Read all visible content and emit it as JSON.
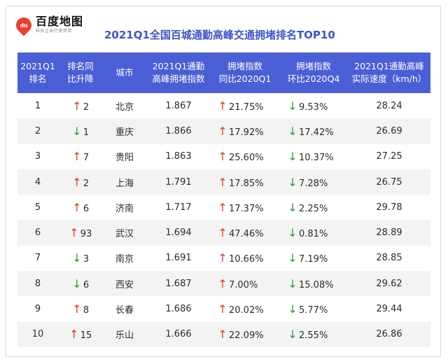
{
  "logo": {
    "badge": "du",
    "name": "百度地图",
    "slogan": "科技让出行更简单"
  },
  "title": "2021Q1全国百城通勤高峰交通拥堵排名TOP10",
  "colors": {
    "header_bg": "#4a5fd6",
    "title": "#3f55c8",
    "up_arrow": "#e23b2b",
    "down_arrow": "#2e9a3a"
  },
  "columns": [
    "2021Q1\n排名",
    "排名同\n比升降",
    "城市",
    "2021Q1通勤\n高峰拥堵指数",
    "拥堵指数\n同比2020Q1",
    "拥堵指数\n环比2020Q4",
    "2021Q1通勤高峰\n实际速度（km/h）"
  ],
  "rows": [
    {
      "rank": "1",
      "rank_dir": "up",
      "rank_change": "2",
      "city": "北京",
      "index": "1.867",
      "yoy_dir": "up",
      "yoy": "21.75%",
      "qoq_dir": "down",
      "qoq": "9.53%",
      "speed": "28.24"
    },
    {
      "rank": "2",
      "rank_dir": "down",
      "rank_change": "1",
      "city": "重庆",
      "index": "1.866",
      "yoy_dir": "up",
      "yoy": "17.92%",
      "qoq_dir": "down",
      "qoq": "17.42%",
      "speed": "26.69"
    },
    {
      "rank": "3",
      "rank_dir": "up",
      "rank_change": "7",
      "city": "贵阳",
      "index": "1.863",
      "yoy_dir": "up",
      "yoy": "25.60%",
      "qoq_dir": "down",
      "qoq": "10.37%",
      "speed": "27.25"
    },
    {
      "rank": "4",
      "rank_dir": "up",
      "rank_change": "2",
      "city": "上海",
      "index": "1.791",
      "yoy_dir": "up",
      "yoy": "17.85%",
      "qoq_dir": "down",
      "qoq": "7.28%",
      "speed": "26.75"
    },
    {
      "rank": "5",
      "rank_dir": "up",
      "rank_change": "6",
      "city": "济南",
      "index": "1.717",
      "yoy_dir": "up",
      "yoy": "17.37%",
      "qoq_dir": "down",
      "qoq": "2.25%",
      "speed": "29.78"
    },
    {
      "rank": "6",
      "rank_dir": "up",
      "rank_change": "93",
      "city": "武汉",
      "index": "1.694",
      "yoy_dir": "up",
      "yoy": "47.46%",
      "qoq_dir": "down",
      "qoq": "0.81%",
      "speed": "28.89"
    },
    {
      "rank": "7",
      "rank_dir": "down",
      "rank_change": "3",
      "city": "南京",
      "index": "1.691",
      "yoy_dir": "up",
      "yoy": "10.66%",
      "qoq_dir": "down",
      "qoq": "7.19%",
      "speed": "28.85"
    },
    {
      "rank": "8",
      "rank_dir": "down",
      "rank_change": "6",
      "city": "西安",
      "index": "1.687",
      "yoy_dir": "up",
      "yoy": "7.00%",
      "qoq_dir": "down",
      "qoq": "15.08%",
      "speed": "29.62"
    },
    {
      "rank": "9",
      "rank_dir": "up",
      "rank_change": "8",
      "city": "长春",
      "index": "1.686",
      "yoy_dir": "up",
      "yoy": "20.02%",
      "qoq_dir": "down",
      "qoq": "5.77%",
      "speed": "29.44"
    },
    {
      "rank": "10",
      "rank_dir": "up",
      "rank_change": "15",
      "city": "乐山",
      "index": "1.666",
      "yoy_dir": "up",
      "yoy": "22.09%",
      "qoq_dir": "down",
      "qoq": "2.55%",
      "speed": "26.86"
    }
  ]
}
